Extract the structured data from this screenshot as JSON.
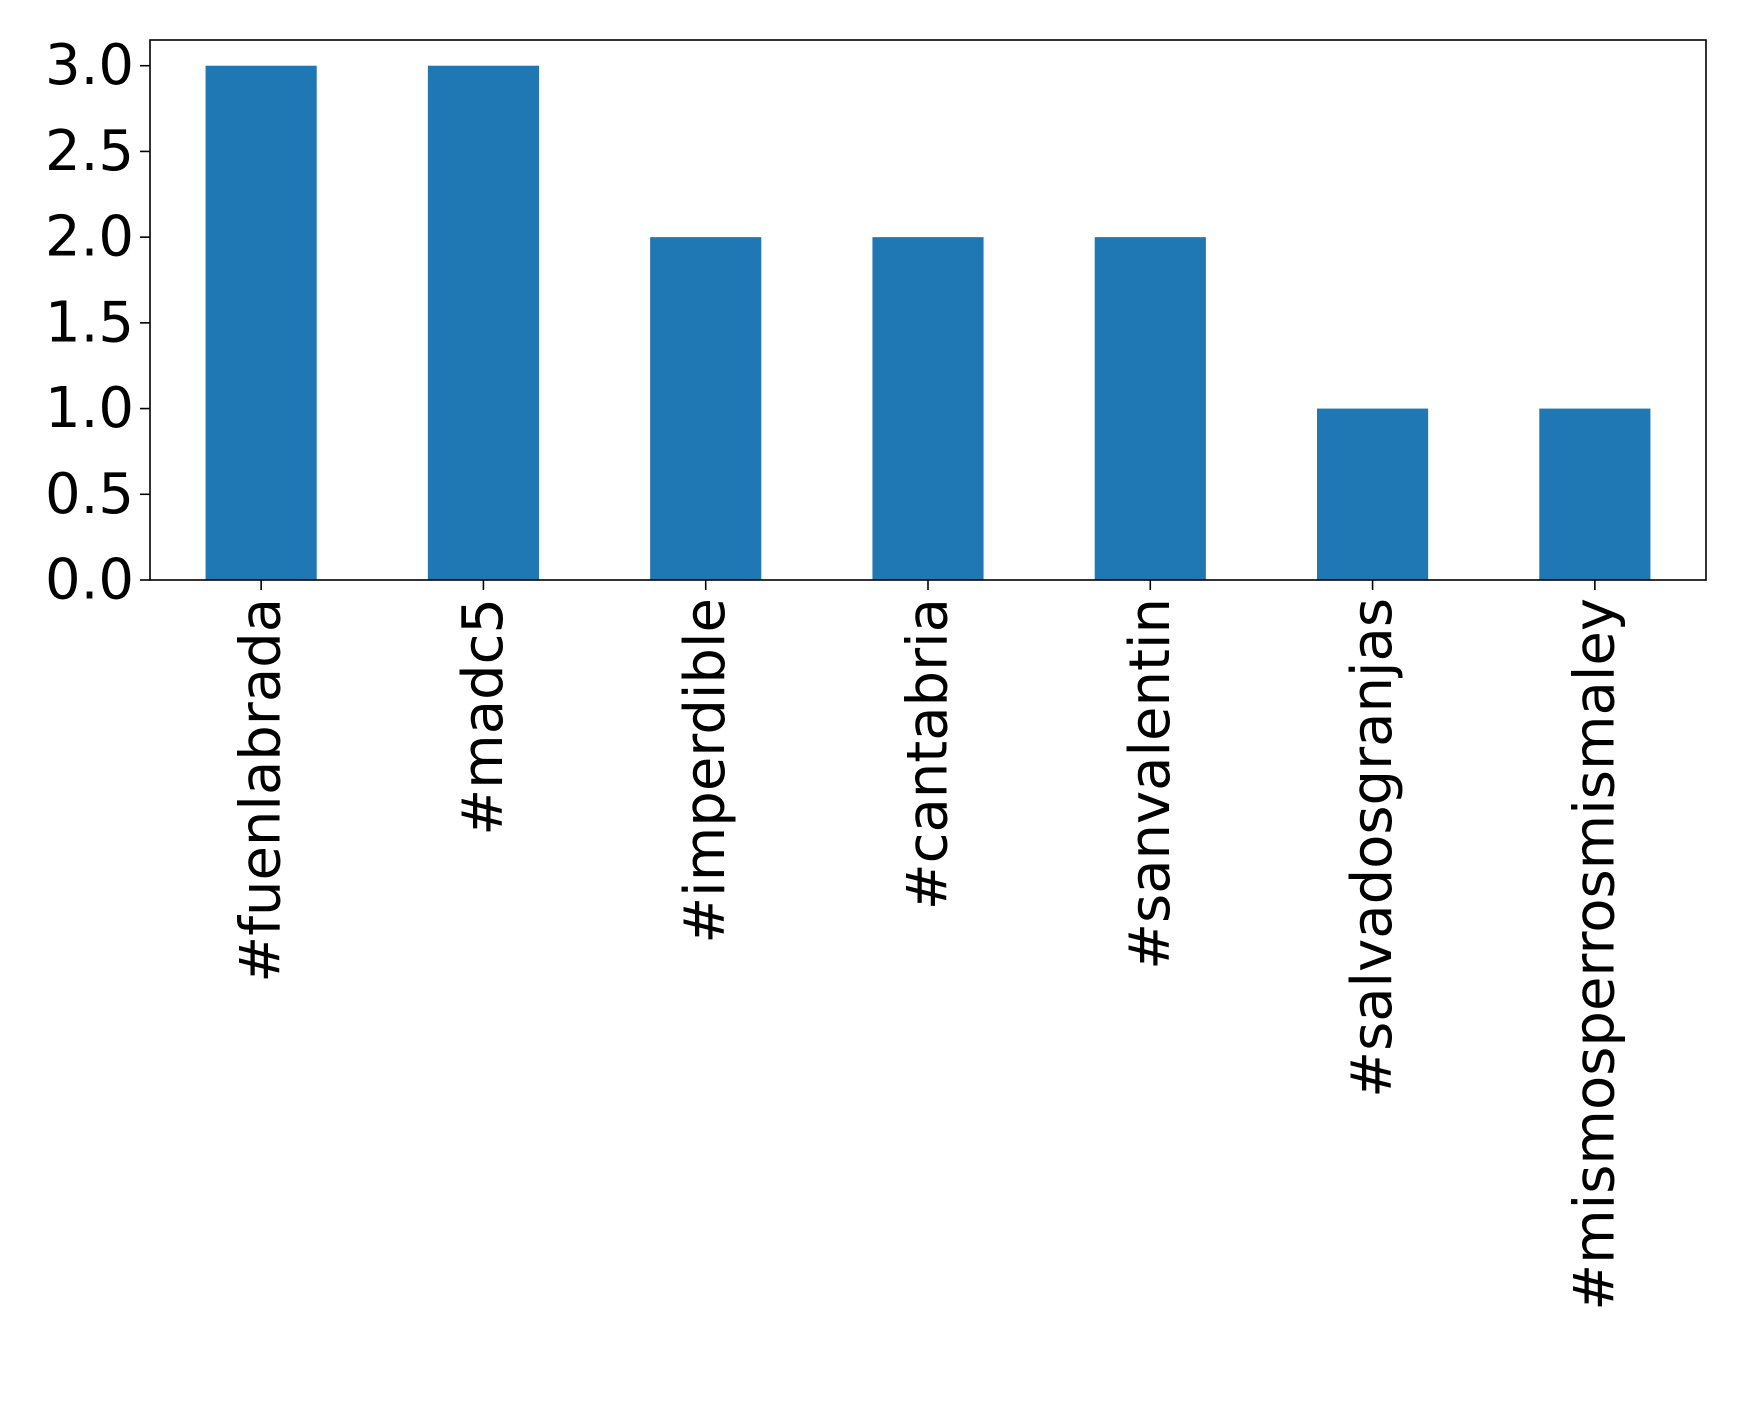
{
  "chart_data": {
    "type": "bar",
    "categories": [
      "#fuenlabrada",
      "#madc5",
      "#imperdible",
      "#cantabria",
      "#sanvalentin",
      "#salvadosgranjas",
      "#mismosperrosmismaley"
    ],
    "values": [
      3,
      3,
      2,
      2,
      2,
      1,
      1
    ],
    "title": "",
    "xlabel": "",
    "ylabel": "",
    "ylim": [
      0,
      3.15
    ],
    "yticks": [
      "0.0",
      "0.5",
      "1.0",
      "1.5",
      "2.0",
      "2.5",
      "3.0"
    ],
    "grid": false,
    "legend": "none",
    "bar_color": "#1f77b4"
  }
}
